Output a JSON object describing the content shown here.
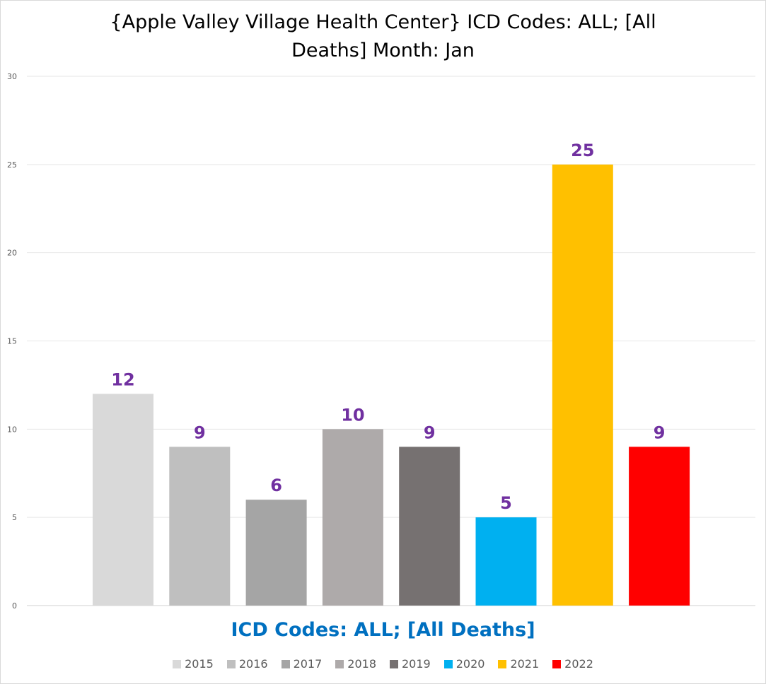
{
  "chart_data": {
    "type": "bar",
    "title_lines": [
      "{Apple Valley Village Health Center}  ICD Codes: ALL;  [All",
      "Deaths] Month: Jan"
    ],
    "xlabel": "ICD Codes: ALL;  [All Deaths]",
    "ylabel": "",
    "ylim": [
      0,
      30
    ],
    "yticks": [
      0,
      5,
      10,
      15,
      20,
      25,
      30
    ],
    "grid": true,
    "legend_position": "bottom",
    "series": [
      {
        "name": "2015",
        "value": 12,
        "color": "#d9d9d9"
      },
      {
        "name": "2016",
        "value": 9,
        "color": "#bfbfbf"
      },
      {
        "name": "2017",
        "value": 6,
        "color": "#a5a5a5"
      },
      {
        "name": "2018",
        "value": 10,
        "color": "#aeaaaa"
      },
      {
        "name": "2019",
        "value": 9,
        "color": "#767171"
      },
      {
        "name": "2020",
        "value": 5,
        "color": "#00b0f0"
      },
      {
        "name": "2021",
        "value": 25,
        "color": "#ffc000"
      },
      {
        "name": "2022",
        "value": 9,
        "color": "#ff0000"
      }
    ],
    "data_label_color": "#7030a0",
    "gridline_color": "#e6e6e6",
    "tick_label_color": "#595959"
  }
}
